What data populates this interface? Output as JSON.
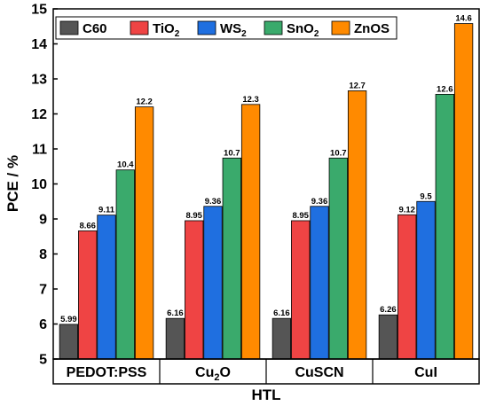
{
  "chart_data": {
    "type": "bar",
    "xlabel": "HTL",
    "ylabel": "PCE / %",
    "ylim": [
      5,
      15
    ],
    "yticks": [
      5,
      6,
      7,
      8,
      9,
      10,
      11,
      12,
      13,
      14,
      15
    ],
    "grid": false,
    "legend_position": "top-left",
    "categories": [
      {
        "text": "PEDOT:PSS"
      },
      {
        "text": "Cu",
        "sub": "2",
        "post": "O"
      },
      {
        "text": "CuSCN"
      },
      {
        "text": "CuI"
      }
    ],
    "series": [
      {
        "name": "C60",
        "sub": "",
        "color": "#555555",
        "values": [
          5.99,
          6.16,
          6.16,
          6.26
        ],
        "labels": [
          "5.99",
          "6.16",
          "6.16",
          "6.26"
        ]
      },
      {
        "name": "TiO",
        "sub": "2",
        "color": "#ef4444",
        "values": [
          8.66,
          8.95,
          8.95,
          9.12
        ],
        "labels": [
          "8.66",
          "8.95",
          "8.95",
          "9.12"
        ]
      },
      {
        "name": "WS",
        "sub": "2",
        "color": "#1f6fe0",
        "values": [
          9.11,
          9.36,
          9.36,
          9.5
        ],
        "labels": [
          "9.11",
          "9.36",
          "9.36",
          "9.5"
        ]
      },
      {
        "name": "SnO",
        "sub": "2",
        "color": "#3aaa6c",
        "values": [
          10.4,
          10.74,
          10.74,
          12.56
        ],
        "labels": [
          "10.4",
          "10.7",
          "10.7",
          "12.6"
        ]
      },
      {
        "name": "ZnOS",
        "sub": "",
        "color": "#ff8a00",
        "values": [
          12.2,
          12.27,
          12.66,
          14.58
        ],
        "labels": [
          "12.2",
          "12.3",
          "12.7",
          "14.6"
        ]
      }
    ]
  }
}
